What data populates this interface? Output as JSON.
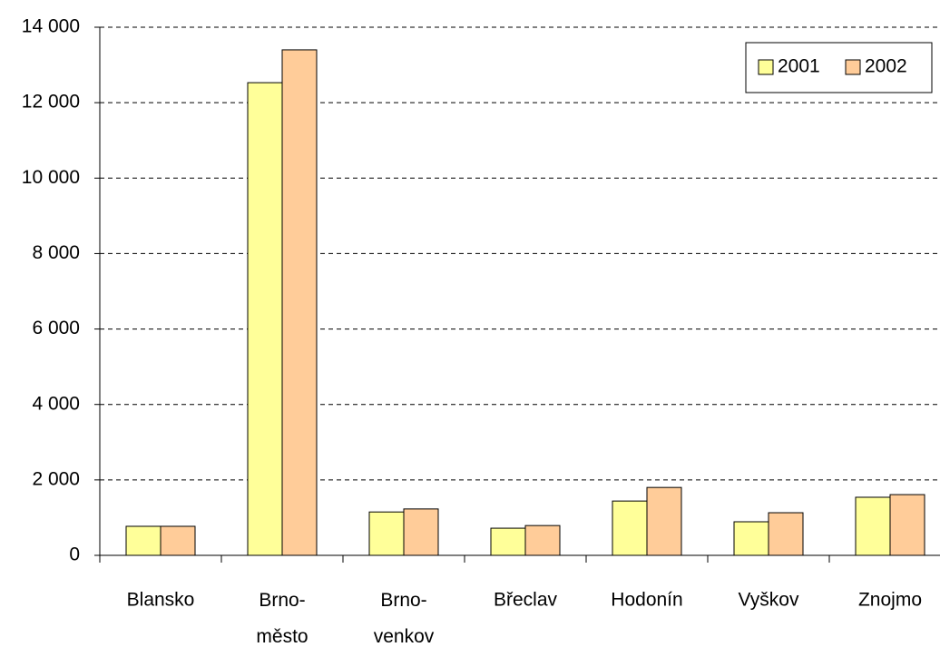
{
  "chart_data": {
    "type": "bar",
    "categories": [
      "Blansko",
      "Brno-město",
      "Brno-venkov",
      "Břeclav",
      "Hodonín",
      "Vyškov",
      "Znojmo"
    ],
    "series": [
      {
        "name": "2001",
        "color": "#ffff99",
        "values": [
          770,
          12530,
          1150,
          720,
          1440,
          890,
          1540
        ]
      },
      {
        "name": "2002",
        "color": "#ffcc99",
        "values": [
          770,
          13400,
          1230,
          790,
          1800,
          1130,
          1610
        ]
      }
    ],
    "ylim": [
      0,
      14000
    ],
    "yticks": [
      0,
      {
        "value": 2000,
        "label": "2 000"
      },
      {
        "value": 4000,
        "label": "4 000"
      },
      {
        "value": 6000,
        "label": "6 000"
      },
      {
        "value": 8000,
        "label": "8 000"
      },
      {
        "value": 10000,
        "label": "10 000"
      },
      {
        "value": 12000,
        "label": "12 000"
      },
      {
        "value": 14000,
        "label": "14 000"
      }
    ],
    "grid": true,
    "legend": "upper right"
  }
}
